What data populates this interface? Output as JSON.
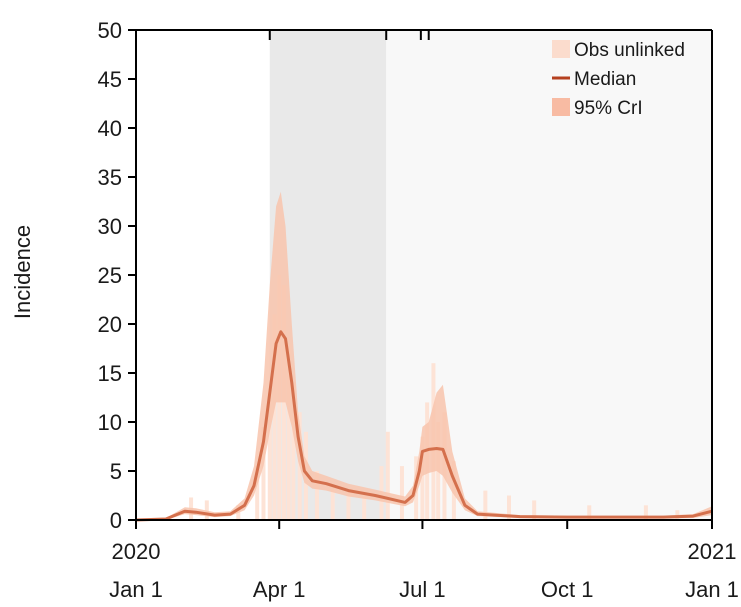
{
  "chart_data": {
    "type": "line",
    "ylabel": "Incidence",
    "ylim": [
      0,
      50
    ],
    "yticks": [
      0,
      5,
      10,
      15,
      20,
      25,
      30,
      35,
      40,
      45,
      50
    ],
    "xlim": [
      "2020-01-01",
      "2021-01-01"
    ],
    "xticks": [
      {
        "date": "2020-01-01",
        "line1": "2020",
        "line2": "Jan 1"
      },
      {
        "date": "2020-04-01",
        "line1": "",
        "line2": "Apr 1"
      },
      {
        "date": "2020-07-01",
        "line1": "",
        "line2": "Jul 1"
      },
      {
        "date": "2020-10-01",
        "line1": "",
        "line2": "Oct 1"
      },
      {
        "date": "2021-01-01",
        "line1": "2021",
        "line2": "Jan 1"
      }
    ],
    "shaded_periods": [
      {
        "start": "2020-03-26",
        "end": "2020-06-08",
        "color": "#e9e9e9"
      },
      {
        "start": "2020-06-08",
        "end": "2021-01-01",
        "color": "#f8f8f8"
      }
    ],
    "top_ticks": [
      "2020-03-26",
      "2020-06-08",
      "2020-06-30",
      "2020-07-05"
    ],
    "legend": {
      "position": "top-right",
      "items": [
        {
          "label": "Obs unlinked",
          "kind": "fill",
          "color": "#fbdccd"
        },
        {
          "label": "Median",
          "kind": "line",
          "color": "#b5401f"
        },
        {
          "label": "95% CrI",
          "kind": "fill",
          "color": "#f8bba3"
        }
      ]
    },
    "colors": {
      "median": "#d4704d",
      "cri": "#f8c4ad",
      "obs": "#fde3d6",
      "axis": "#000000"
    },
    "series": [
      {
        "name": "Median",
        "x": [
          "2020-01-01",
          "2020-01-20",
          "2020-02-01",
          "2020-02-08",
          "2020-02-20",
          "2020-03-01",
          "2020-03-10",
          "2020-03-16",
          "2020-03-22",
          "2020-03-26",
          "2020-03-30",
          "2020-04-02",
          "2020-04-05",
          "2020-04-09",
          "2020-04-13",
          "2020-04-17",
          "2020-04-22",
          "2020-05-01",
          "2020-05-15",
          "2020-06-01",
          "2020-06-20",
          "2020-06-25",
          "2020-06-29",
          "2020-07-01",
          "2020-07-05",
          "2020-07-10",
          "2020-07-14",
          "2020-07-20",
          "2020-07-28",
          "2020-08-05",
          "2020-09-01",
          "2020-10-01",
          "2020-11-01",
          "2020-12-01",
          "2020-12-20",
          "2021-01-01"
        ],
        "values": [
          0,
          0.1,
          0.9,
          0.8,
          0.5,
          0.6,
          1.5,
          3.5,
          8.0,
          13.0,
          18.0,
          19.2,
          18.5,
          14.0,
          8.5,
          5.0,
          4.0,
          3.7,
          3.0,
          2.5,
          1.8,
          2.5,
          5.0,
          7.0,
          7.2,
          7.3,
          7.2,
          4.5,
          1.5,
          0.6,
          0.35,
          0.3,
          0.3,
          0.3,
          0.4,
          0.9
        ]
      },
      {
        "name": "95% CrI",
        "x": [
          "2020-01-01",
          "2020-01-20",
          "2020-02-01",
          "2020-02-08",
          "2020-02-20",
          "2020-03-01",
          "2020-03-10",
          "2020-03-16",
          "2020-03-22",
          "2020-03-26",
          "2020-03-30",
          "2020-04-02",
          "2020-04-05",
          "2020-04-09",
          "2020-04-13",
          "2020-04-17",
          "2020-04-22",
          "2020-05-01",
          "2020-05-15",
          "2020-06-01",
          "2020-06-20",
          "2020-06-25",
          "2020-06-29",
          "2020-07-01",
          "2020-07-05",
          "2020-07-10",
          "2020-07-14",
          "2020-07-20",
          "2020-07-28",
          "2020-08-05",
          "2020-09-01",
          "2020-10-01",
          "2020-11-01",
          "2020-12-01",
          "2020-12-20",
          "2021-01-01"
        ],
        "lower": [
          0,
          0,
          0.6,
          0.5,
          0.3,
          0.4,
          1.0,
          2.5,
          5.5,
          9.0,
          12.0,
          12.0,
          12.0,
          9.5,
          6.0,
          3.8,
          3.2,
          3.0,
          2.4,
          2.0,
          1.4,
          1.8,
          3.5,
          4.5,
          4.8,
          5.0,
          4.5,
          2.8,
          1.0,
          0.4,
          0.2,
          0.15,
          0.15,
          0.15,
          0.2,
          0.5
        ],
        "upper": [
          0,
          0.2,
          1.3,
          1.2,
          0.8,
          0.9,
          2.2,
          5.5,
          14.0,
          24.0,
          32.0,
          33.5,
          30.0,
          20.0,
          11.0,
          6.5,
          5.0,
          4.5,
          3.7,
          3.1,
          2.4,
          3.5,
          7.0,
          9.5,
          10.0,
          13.0,
          13.8,
          7.0,
          2.2,
          0.9,
          0.5,
          0.45,
          0.45,
          0.45,
          0.6,
          1.4
        ]
      },
      {
        "name": "Obs unlinked",
        "x": [
          "2020-02-05",
          "2020-02-15",
          "2020-03-06",
          "2020-03-18",
          "2020-03-22",
          "2020-03-26",
          "2020-03-29",
          "2020-04-01",
          "2020-04-04",
          "2020-04-07",
          "2020-04-10",
          "2020-04-14",
          "2020-04-18",
          "2020-04-25",
          "2020-05-05",
          "2020-05-15",
          "2020-05-25",
          "2020-06-05",
          "2020-06-09",
          "2020-06-18",
          "2020-06-27",
          "2020-07-01",
          "2020-07-04",
          "2020-07-08",
          "2020-07-11",
          "2020-07-15",
          "2020-07-21",
          "2020-08-10",
          "2020-08-25",
          "2020-09-10",
          "2020-10-15",
          "2020-11-20",
          "2020-12-10"
        ],
        "values": [
          2.3,
          2.0,
          1.5,
          5.5,
          9.5,
          13.0,
          21.0,
          25.0,
          24.0,
          18.0,
          14.0,
          11.0,
          9.0,
          5.0,
          3.5,
          3.0,
          2.5,
          5.5,
          9.0,
          5.5,
          6.5,
          8.5,
          12.0,
          16.0,
          10.0,
          11.0,
          6.0,
          3.0,
          2.5,
          2.0,
          1.5,
          1.5,
          1.0
        ]
      }
    ]
  }
}
